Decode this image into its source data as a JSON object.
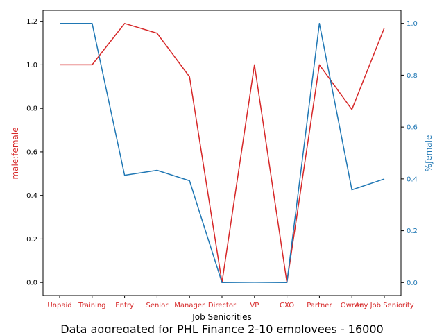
{
  "chart_data": {
    "type": "line",
    "categories": [
      "Unpaid",
      "Training",
      "Entry",
      "Senior",
      "Manager",
      "Director",
      "VP",
      "CXO",
      "Partner",
      "Owner",
      "Any Job Seniority"
    ],
    "xlabel": "Job Seniorities",
    "ylabel_left": "male:female",
    "ylabel_right": "%ƒemale",
    "ylim_left": [
      -0.06,
      1.25
    ],
    "ylim_right": [
      -0.05,
      1.05
    ],
    "yticks_left": [
      "0.0",
      "0.2",
      "0.4",
      "0.6",
      "0.8",
      "1.0",
      "1.2"
    ],
    "yticks_right": [
      "0.0",
      "0.2",
      "0.4",
      "0.6",
      "0.8",
      "1.0"
    ],
    "series": [
      {
        "name": "male:female",
        "axis": "left",
        "color": "#d62728",
        "values": [
          1.0,
          1.0,
          1.19,
          1.145,
          0.945,
          0.0,
          1.0,
          0.0,
          1.0,
          0.795,
          1.17
        ]
      },
      {
        "name": "%female",
        "axis": "right",
        "color": "#1f77b4",
        "values": [
          1.0,
          1.0,
          0.414,
          0.433,
          0.393,
          0.0,
          0.001,
          0.0,
          1.0,
          0.358,
          0.4
        ]
      }
    ],
    "caption": "Data aggregated for PHL Finance 2-10 employees - 16000",
    "colors": {
      "left_axis": "#d62728",
      "right_axis": "#1f77b4",
      "frame": "#000000"
    }
  }
}
